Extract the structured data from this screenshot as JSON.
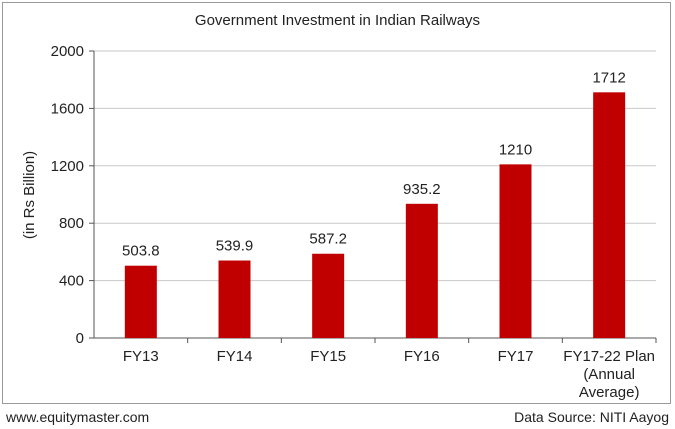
{
  "chart_data": {
    "type": "bar",
    "title": "Government Investment in Indian Railways",
    "ylabel": "(in Rs Billion)",
    "xlabel": "",
    "ylim": [
      0,
      2000
    ],
    "yticks": [
      0,
      400,
      800,
      1200,
      1600,
      2000
    ],
    "grid": true,
    "categories": [
      [
        "FY13"
      ],
      [
        "FY14"
      ],
      [
        "FY15"
      ],
      [
        "FY16"
      ],
      [
        "FY17"
      ],
      [
        "FY17-22 Plan",
        "(Annual",
        "Average)"
      ]
    ],
    "values": [
      503.8,
      539.9,
      587.2,
      935.2,
      1210,
      1712
    ],
    "value_labels": [
      "503.8",
      "539.9",
      "587.2",
      "935.2",
      "1210",
      "1712"
    ],
    "bar_color": "#c00000",
    "grid_color": "#c8c8c8"
  },
  "footer": {
    "website": "www.equitymaster.com",
    "source": "Data Source: NITI Aayog"
  }
}
